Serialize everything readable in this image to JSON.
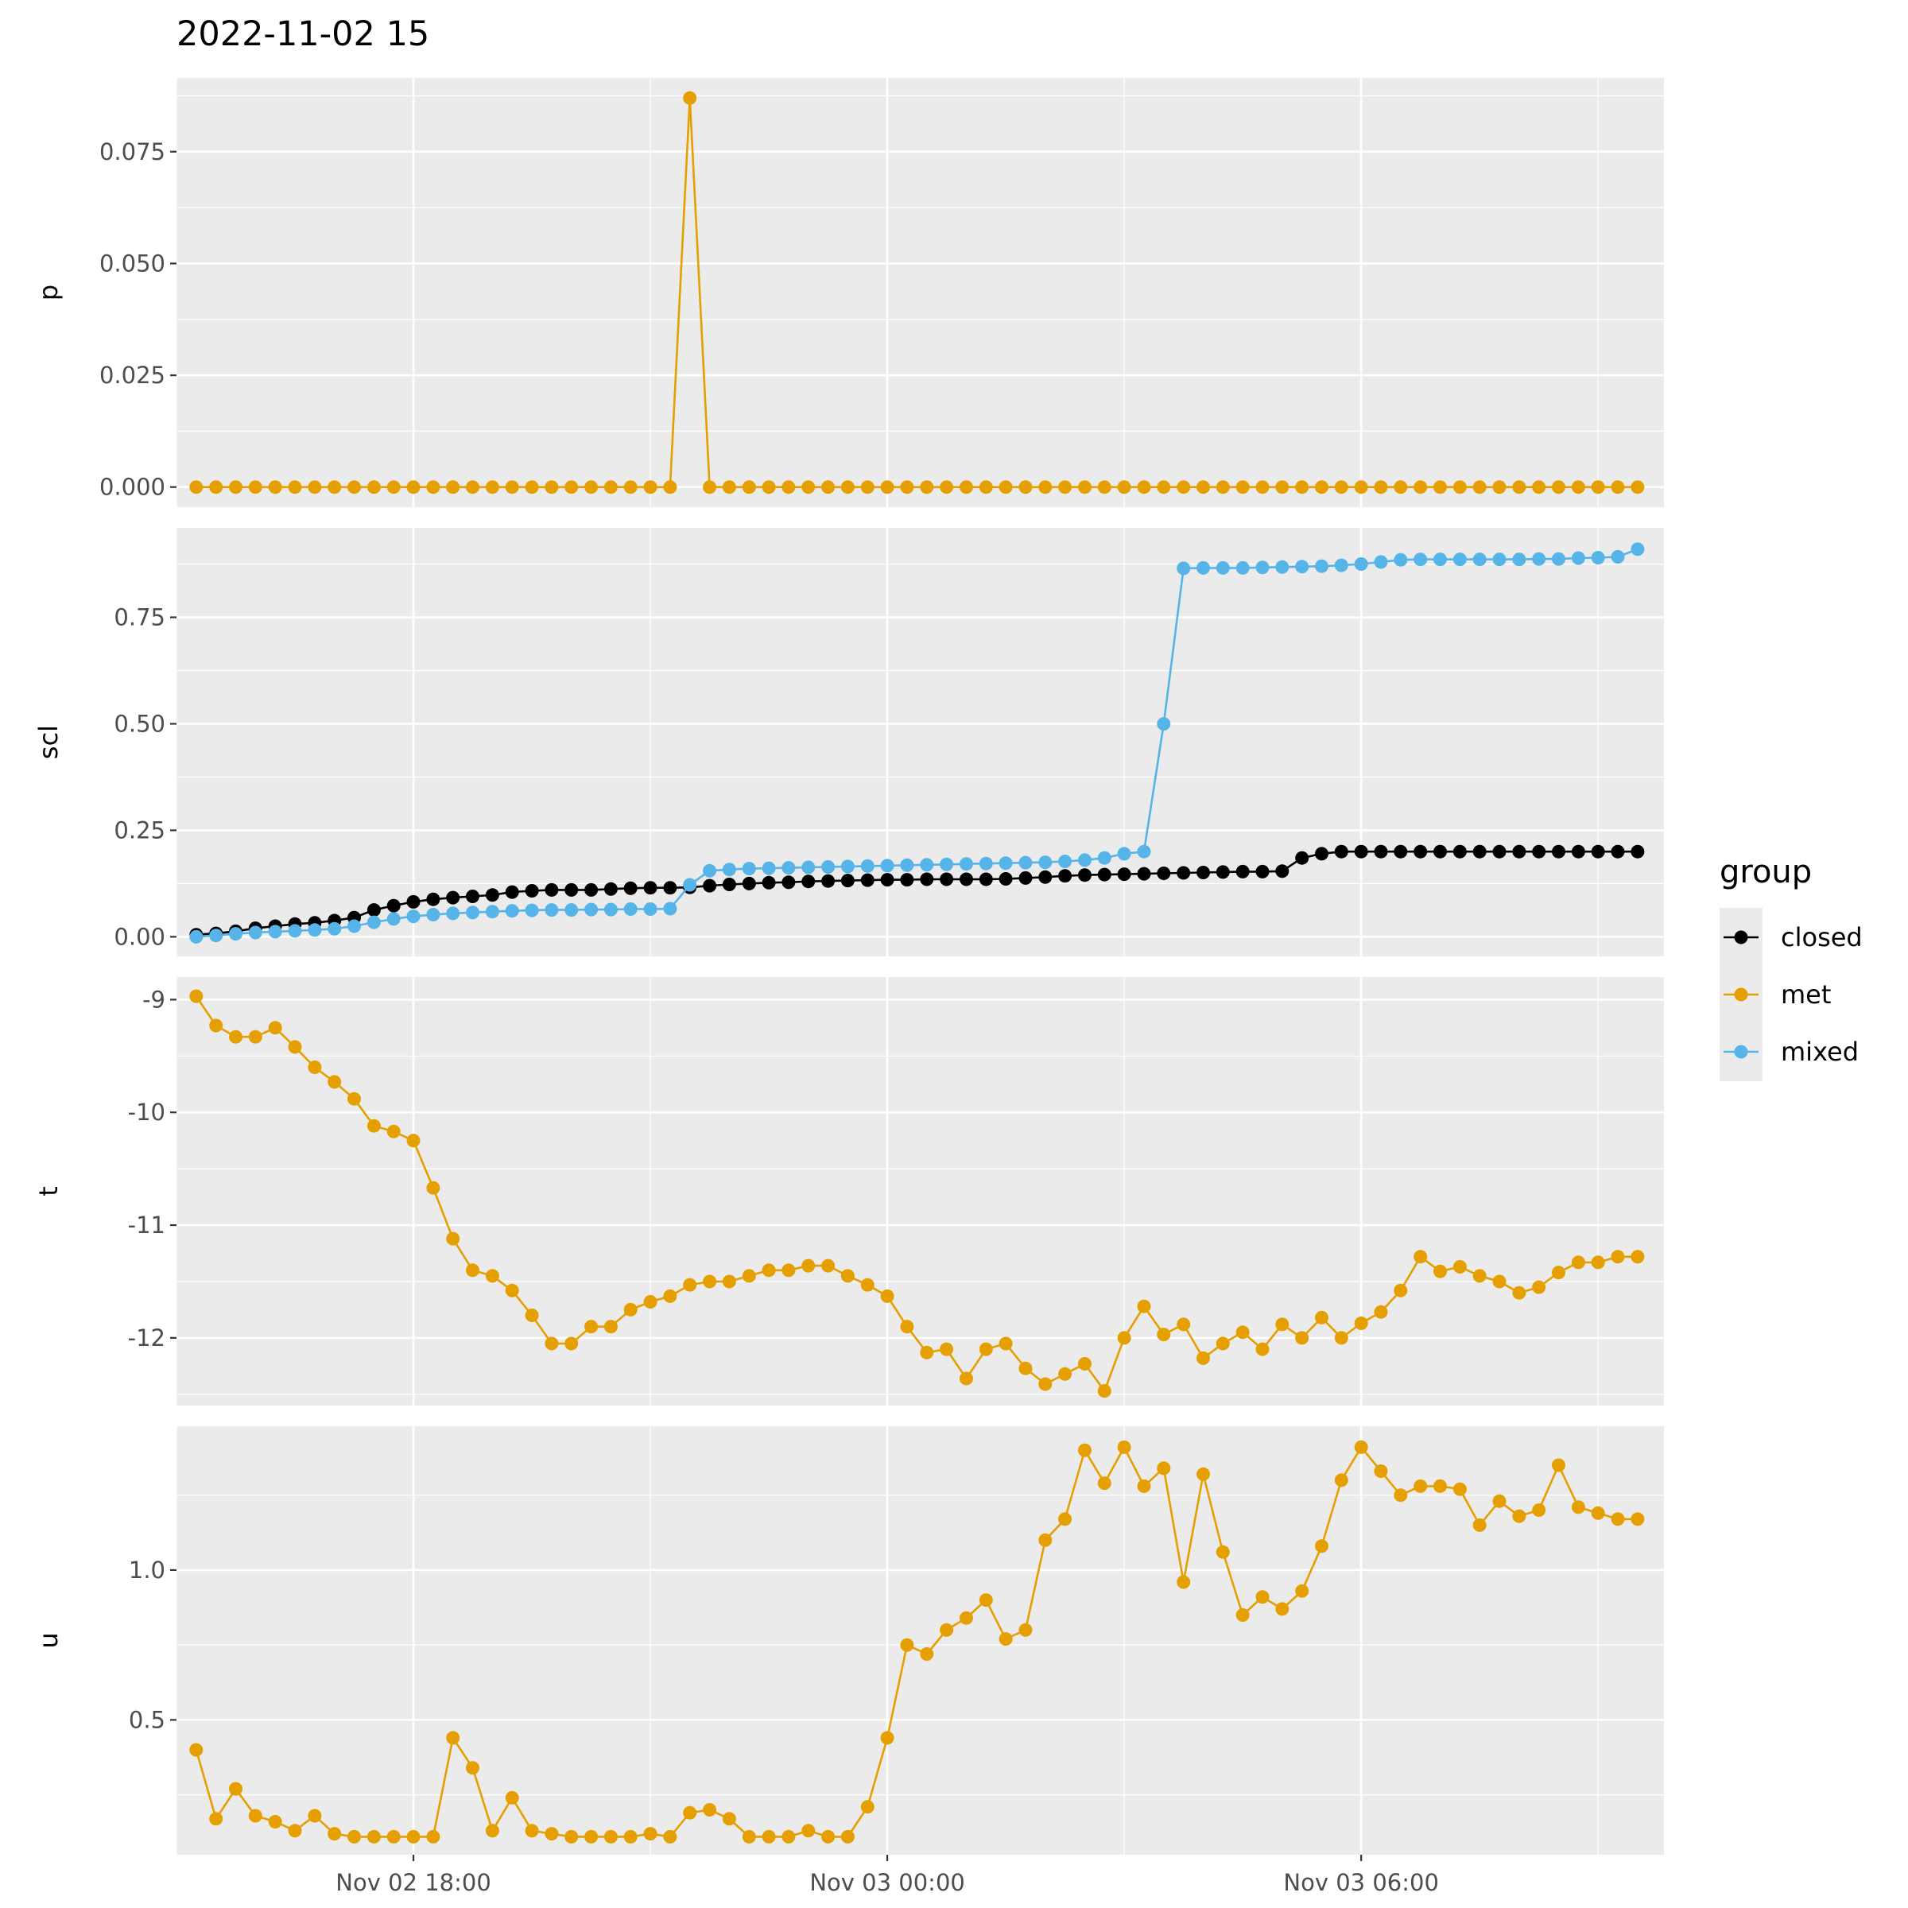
{
  "chart_data": {
    "type": "line",
    "title": "2022-11-02 15",
    "x_start": "2022-11-02 15:15",
    "x_step_minutes": 15,
    "x_count": 74,
    "x_tick_labels": [
      "Nov 02 18:00",
      "Nov 03 00:00",
      "Nov 03 06:00"
    ],
    "x_tick_times": [
      "2022-11-02 18:00",
      "2022-11-03 00:00",
      "2022-11-03 06:00"
    ],
    "x_minor_times": [
      "2022-11-02 15:00",
      "2022-11-02 21:00",
      "2022-11-03 03:00",
      "2022-11-03 09:00"
    ],
    "grid": true,
    "legend": {
      "title": "group",
      "position": "right",
      "entries": [
        {
          "name": "closed",
          "color": "#000000"
        },
        {
          "name": "met",
          "color": "#E69F00"
        },
        {
          "name": "mixed",
          "color": "#56B4E9"
        }
      ]
    },
    "panels": [
      {
        "ylabel": "p",
        "ylim": [
          -0.0045,
          0.0915
        ],
        "yticks": [
          0.0,
          0.025,
          0.05,
          0.075
        ],
        "ytick_labels": [
          "0.000",
          "0.025",
          "0.050",
          "0.075"
        ],
        "series": [
          {
            "name": "met",
            "values": [
              0,
              0,
              0,
              0,
              0,
              0,
              0,
              0,
              0,
              0,
              0,
              0,
              0,
              0,
              0,
              0,
              0,
              0,
              0,
              0,
              0,
              0,
              0,
              0,
              0,
              0.087,
              0,
              0,
              0,
              0,
              0,
              0,
              0,
              0,
              0,
              0,
              0,
              0,
              0,
              0,
              0,
              0,
              0,
              0,
              0,
              0,
              0,
              0,
              0,
              0,
              0,
              0,
              0,
              0,
              0,
              0,
              0,
              0,
              0,
              0,
              0,
              0,
              0,
              0,
              0,
              0,
              0,
              0,
              0,
              0,
              0,
              0,
              0,
              0
            ]
          }
        ]
      },
      {
        "ylabel": "scl",
        "ylim": [
          -0.046,
          0.96
        ],
        "yticks": [
          0.0,
          0.25,
          0.5,
          0.75
        ],
        "ytick_labels": [
          "0.00",
          "0.25",
          "0.50",
          "0.75"
        ],
        "series": [
          {
            "name": "closed",
            "values": [
              0.005,
              0.008,
              0.013,
              0.02,
              0.025,
              0.03,
              0.033,
              0.038,
              0.045,
              0.063,
              0.073,
              0.082,
              0.088,
              0.092,
              0.095,
              0.098,
              0.105,
              0.108,
              0.11,
              0.11,
              0.11,
              0.112,
              0.114,
              0.115,
              0.115,
              0.116,
              0.12,
              0.123,
              0.125,
              0.127,
              0.128,
              0.13,
              0.131,
              0.132,
              0.133,
              0.134,
              0.134,
              0.135,
              0.135,
              0.135,
              0.135,
              0.136,
              0.138,
              0.14,
              0.143,
              0.145,
              0.146,
              0.147,
              0.148,
              0.149,
              0.15,
              0.151,
              0.152,
              0.153,
              0.153,
              0.154,
              0.185,
              0.195,
              0.2,
              0.2,
              0.2,
              0.2,
              0.2,
              0.2,
              0.2,
              0.2,
              0.2,
              0.2,
              0.2,
              0.2,
              0.2,
              0.2,
              0.2,
              0.2
            ]
          },
          {
            "name": "mixed",
            "values": [
              0,
              0.003,
              0.007,
              0.01,
              0.012,
              0.014,
              0.016,
              0.019,
              0.025,
              0.034,
              0.042,
              0.048,
              0.052,
              0.055,
              0.057,
              0.059,
              0.061,
              0.062,
              0.063,
              0.063,
              0.064,
              0.064,
              0.065,
              0.065,
              0.066,
              0.122,
              0.155,
              0.158,
              0.16,
              0.161,
              0.162,
              0.163,
              0.164,
              0.165,
              0.166,
              0.167,
              0.168,
              0.169,
              0.17,
              0.171,
              0.172,
              0.173,
              0.174,
              0.175,
              0.177,
              0.18,
              0.185,
              0.195,
              0.2,
              0.5,
              0.865,
              0.866,
              0.866,
              0.866,
              0.867,
              0.868,
              0.869,
              0.87,
              0.872,
              0.875,
              0.88,
              0.885,
              0.886,
              0.886,
              0.886,
              0.886,
              0.886,
              0.886,
              0.887,
              0.887,
              0.889,
              0.89,
              0.892,
              0.91
            ]
          }
        ]
      },
      {
        "ylabel": "t",
        "ylim": [
          -12.6,
          -8.8
        ],
        "yticks": [
          -12,
          -11,
          -10,
          -9
        ],
        "ytick_labels": [
          "-12",
          "-11",
          "-10",
          "-9"
        ],
        "series": [
          {
            "name": "met",
            "values": [
              -8.97,
              -9.23,
              -9.33,
              -9.33,
              -9.25,
              -9.42,
              -9.6,
              -9.73,
              -9.88,
              -10.12,
              -10.17,
              -10.25,
              -10.67,
              -11.12,
              -11.4,
              -11.45,
              -11.58,
              -11.8,
              -12.05,
              -12.05,
              -11.9,
              -11.9,
              -11.75,
              -11.68,
              -11.63,
              -11.53,
              -11.5,
              -11.5,
              -11.45,
              -11.4,
              -11.4,
              -11.36,
              -11.36,
              -11.45,
              -11.53,
              -11.63,
              -11.9,
              -12.13,
              -12.1,
              -12.36,
              -12.1,
              -12.05,
              -12.27,
              -12.41,
              -12.32,
              -12.23,
              -12.47,
              -12.0,
              -11.72,
              -11.97,
              -11.88,
              -12.18,
              -12.05,
              -11.95,
              -12.1,
              -11.88,
              -12.0,
              -11.82,
              -12.0,
              -11.87,
              -11.77,
              -11.58,
              -11.28,
              -11.41,
              -11.37,
              -11.45,
              -11.5,
              -11.6,
              -11.55,
              -11.42,
              -11.33,
              -11.33,
              -11.28,
              -11.28
            ]
          }
        ]
      },
      {
        "ylabel": "u",
        "ylim": [
          0.05,
          1.48
        ],
        "yticks": [
          0.5,
          1.0
        ],
        "ytick_labels": [
          "0.5",
          "1.0"
        ],
        "series": [
          {
            "name": "met",
            "values": [
              0.4,
              0.17,
              0.27,
              0.18,
              0.16,
              0.13,
              0.18,
              0.12,
              0.11,
              0.11,
              0.11,
              0.11,
              0.11,
              0.44,
              0.34,
              0.13,
              0.24,
              0.13,
              0.12,
              0.11,
              0.11,
              0.11,
              0.11,
              0.12,
              0.11,
              0.19,
              0.2,
              0.17,
              0.11,
              0.11,
              0.11,
              0.13,
              0.11,
              0.11,
              0.21,
              0.44,
              0.75,
              0.72,
              0.8,
              0.84,
              0.9,
              0.77,
              0.8,
              1.1,
              1.17,
              1.4,
              1.29,
              1.41,
              1.28,
              1.34,
              0.96,
              1.32,
              1.06,
              0.85,
              0.91,
              0.87,
              0.93,
              1.08,
              1.3,
              1.41,
              1.33,
              1.25,
              1.28,
              1.28,
              1.27,
              1.15,
              1.23,
              1.18,
              1.2,
              1.35,
              1.21,
              1.19,
              1.17,
              1.17
            ]
          }
        ]
      }
    ]
  }
}
